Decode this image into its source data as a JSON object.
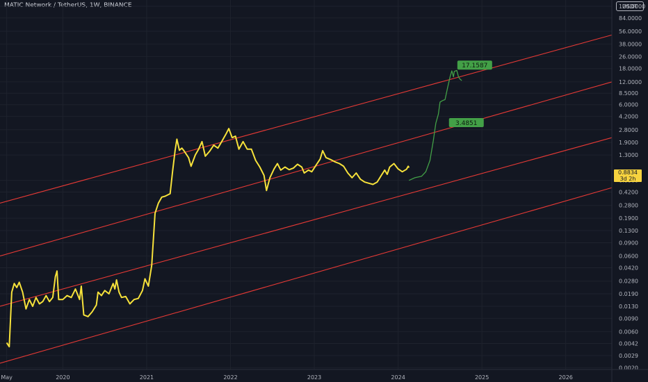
{
  "header": {
    "title": "MATIC Network / TetherUS, 1W, BINANCE"
  },
  "axis": {
    "currency_button": "USDT"
  },
  "price_box": {
    "price": "0.8834",
    "countdown": "3d 2h"
  },
  "colors": {
    "background": "#131722",
    "price_line": "#f7e23b",
    "forecast_line": "#43a047",
    "channel": "#e53935",
    "label_bg": "#43a047",
    "price_box": "#f7d33f"
  },
  "chart_data": {
    "type": "line",
    "scale": "log",
    "ylim": [
      0.0019,
      145
    ],
    "xlim": [
      2019.25,
      2026.55
    ],
    "y_ticks": [
      {
        "v": 120,
        "l": "120.0000"
      },
      {
        "v": 84,
        "l": "84.0000"
      },
      {
        "v": 56,
        "l": "56.0000"
      },
      {
        "v": 38,
        "l": "38.0000"
      },
      {
        "v": 26,
        "l": "26.0000"
      },
      {
        "v": 18,
        "l": "18.0000"
      },
      {
        "v": 12,
        "l": "12.0000"
      },
      {
        "v": 8.5,
        "l": "8.5000"
      },
      {
        "v": 6,
        "l": "6.0000"
      },
      {
        "v": 4.2,
        "l": "4.2000"
      },
      {
        "v": 2.8,
        "l": "2.8000"
      },
      {
        "v": 1.9,
        "l": "1.9000"
      },
      {
        "v": 1.3,
        "l": "1.3000"
      },
      {
        "v": 0.6,
        "l": "0.6000"
      },
      {
        "v": 0.42,
        "l": "0.4200"
      },
      {
        "v": 0.28,
        "l": "0.2800"
      },
      {
        "v": 0.19,
        "l": "0.1900"
      },
      {
        "v": 0.13,
        "l": "0.1300"
      },
      {
        "v": 0.09,
        "l": "0.0900"
      },
      {
        "v": 0.06,
        "l": "0.0600"
      },
      {
        "v": 0.042,
        "l": "0.0420"
      },
      {
        "v": 0.028,
        "l": "0.0280"
      },
      {
        "v": 0.019,
        "l": "0.0190"
      },
      {
        "v": 0.013,
        "l": "0.0130"
      },
      {
        "v": 0.009,
        "l": "0.0090"
      },
      {
        "v": 0.006,
        "l": "0.0060"
      },
      {
        "v": 0.0042,
        "l": "0.0042"
      },
      {
        "v": 0.0029,
        "l": "0.0029"
      },
      {
        "v": 0.002,
        "l": "0.0020"
      }
    ],
    "x_ticks": [
      {
        "v": 2019.33,
        "l": "May"
      },
      {
        "v": 2020.0,
        "l": "2020"
      },
      {
        "v": 2021.0,
        "l": "2021"
      },
      {
        "v": 2022.0,
        "l": "2022"
      },
      {
        "v": 2023.0,
        "l": "2023"
      },
      {
        "v": 2024.0,
        "l": "2024"
      },
      {
        "v": 2025.0,
        "l": "2025"
      },
      {
        "v": 2026.0,
        "l": "2026"
      }
    ],
    "price_series": {
      "points": [
        [
          2019.33,
          0.0043
        ],
        [
          2019.36,
          0.0038
        ],
        [
          2019.39,
          0.02
        ],
        [
          2019.42,
          0.026
        ],
        [
          2019.45,
          0.023
        ],
        [
          2019.48,
          0.027
        ],
        [
          2019.52,
          0.02
        ],
        [
          2019.56,
          0.012
        ],
        [
          2019.6,
          0.016
        ],
        [
          2019.64,
          0.013
        ],
        [
          2019.68,
          0.017
        ],
        [
          2019.72,
          0.014
        ],
        [
          2019.76,
          0.015
        ],
        [
          2019.8,
          0.018
        ],
        [
          2019.84,
          0.015
        ],
        [
          2019.88,
          0.017
        ],
        [
          2019.91,
          0.032
        ],
        [
          2019.93,
          0.038
        ],
        [
          2019.95,
          0.016
        ],
        [
          2020.0,
          0.016
        ],
        [
          2020.05,
          0.018
        ],
        [
          2020.1,
          0.017
        ],
        [
          2020.15,
          0.022
        ],
        [
          2020.2,
          0.016
        ],
        [
          2020.22,
          0.024
        ],
        [
          2020.25,
          0.01
        ],
        [
          2020.3,
          0.0095
        ],
        [
          2020.35,
          0.011
        ],
        [
          2020.4,
          0.0135
        ],
        [
          2020.42,
          0.02
        ],
        [
          2020.46,
          0.018
        ],
        [
          2020.5,
          0.021
        ],
        [
          2020.55,
          0.019
        ],
        [
          2020.6,
          0.026
        ],
        [
          2020.62,
          0.022
        ],
        [
          2020.64,
          0.029
        ],
        [
          2020.67,
          0.02
        ],
        [
          2020.7,
          0.017
        ],
        [
          2020.75,
          0.0175
        ],
        [
          2020.8,
          0.014
        ],
        [
          2020.85,
          0.016
        ],
        [
          2020.9,
          0.0165
        ],
        [
          2020.95,
          0.021
        ],
        [
          2020.98,
          0.03
        ],
        [
          2021.02,
          0.024
        ],
        [
          2021.06,
          0.045
        ],
        [
          2021.1,
          0.22
        ],
        [
          2021.14,
          0.3
        ],
        [
          2021.18,
          0.36
        ],
        [
          2021.22,
          0.37
        ],
        [
          2021.28,
          0.4
        ],
        [
          2021.31,
          0.8
        ],
        [
          2021.34,
          1.5
        ],
        [
          2021.36,
          2.1
        ],
        [
          2021.39,
          1.5
        ],
        [
          2021.42,
          1.6
        ],
        [
          2021.45,
          1.45
        ],
        [
          2021.5,
          1.2
        ],
        [
          2021.53,
          0.92
        ],
        [
          2021.58,
          1.3
        ],
        [
          2021.62,
          1.55
        ],
        [
          2021.66,
          1.95
        ],
        [
          2021.7,
          1.25
        ],
        [
          2021.75,
          1.45
        ],
        [
          2021.8,
          1.75
        ],
        [
          2021.85,
          1.6
        ],
        [
          2021.9,
          2.0
        ],
        [
          2021.95,
          2.5
        ],
        [
          2021.98,
          2.9
        ],
        [
          2022.02,
          2.2
        ],
        [
          2022.06,
          2.3
        ],
        [
          2022.1,
          1.55
        ],
        [
          2022.15,
          1.95
        ],
        [
          2022.2,
          1.55
        ],
        [
          2022.25,
          1.55
        ],
        [
          2022.3,
          1.1
        ],
        [
          2022.35,
          0.9
        ],
        [
          2022.4,
          0.7
        ],
        [
          2022.43,
          0.44
        ],
        [
          2022.47,
          0.65
        ],
        [
          2022.52,
          0.85
        ],
        [
          2022.56,
          1.0
        ],
        [
          2022.6,
          0.82
        ],
        [
          2022.65,
          0.9
        ],
        [
          2022.7,
          0.83
        ],
        [
          2022.75,
          0.87
        ],
        [
          2022.8,
          0.98
        ],
        [
          2022.85,
          0.9
        ],
        [
          2022.88,
          0.75
        ],
        [
          2022.93,
          0.82
        ],
        [
          2022.97,
          0.78
        ],
        [
          2023.02,
          0.95
        ],
        [
          2023.07,
          1.15
        ],
        [
          2023.1,
          1.48
        ],
        [
          2023.14,
          1.2
        ],
        [
          2023.2,
          1.12
        ],
        [
          2023.25,
          1.05
        ],
        [
          2023.3,
          1.0
        ],
        [
          2023.35,
          0.92
        ],
        [
          2023.4,
          0.75
        ],
        [
          2023.45,
          0.65
        ],
        [
          2023.5,
          0.75
        ],
        [
          2023.55,
          0.62
        ],
        [
          2023.6,
          0.57
        ],
        [
          2023.65,
          0.55
        ],
        [
          2023.7,
          0.53
        ],
        [
          2023.75,
          0.57
        ],
        [
          2023.8,
          0.7
        ],
        [
          2023.84,
          0.82
        ],
        [
          2023.87,
          0.72
        ],
        [
          2023.9,
          0.9
        ],
        [
          2023.95,
          1.0
        ],
        [
          2024.0,
          0.85
        ],
        [
          2024.05,
          0.78
        ],
        [
          2024.1,
          0.84
        ],
        [
          2024.12,
          0.92
        ],
        [
          2024.13,
          0.8834
        ]
      ]
    },
    "forecast_series": {
      "points": [
        [
          2024.13,
          0.6
        ],
        [
          2024.2,
          0.65
        ],
        [
          2024.28,
          0.68
        ],
        [
          2024.33,
          0.78
        ],
        [
          2024.38,
          1.1
        ],
        [
          2024.42,
          2.0
        ],
        [
          2024.45,
          3.4
        ],
        [
          2024.48,
          4.5
        ],
        [
          2024.5,
          6.5
        ],
        [
          2024.53,
          6.8
        ],
        [
          2024.56,
          7.0
        ],
        [
          2024.59,
          10
        ],
        [
          2024.62,
          14
        ],
        [
          2024.64,
          16.8
        ],
        [
          2024.66,
          14
        ],
        [
          2024.67,
          16.5
        ],
        [
          2024.7,
          17
        ],
        [
          2024.72,
          14
        ],
        [
          2024.74,
          13
        ],
        [
          2024.76,
          12.5
        ]
      ]
    },
    "channels": [
      {
        "x0": 2019.25,
        "y0": 0.3,
        "x1": 2026.55,
        "y1": 50
      },
      {
        "x0": 2019.25,
        "y0": 0.06,
        "x1": 2026.55,
        "y1": 12
      },
      {
        "x0": 2019.25,
        "y0": 0.013,
        "x1": 2026.55,
        "y1": 2.2
      },
      {
        "x0": 2019.25,
        "y0": 0.0023,
        "x1": 2026.55,
        "y1": 0.48
      }
    ],
    "labels": [
      {
        "text": "17.1587",
        "x": 2024.74,
        "y": 20
      },
      {
        "text": "3.4851",
        "x": 2024.64,
        "y": 3.48
      }
    ]
  }
}
